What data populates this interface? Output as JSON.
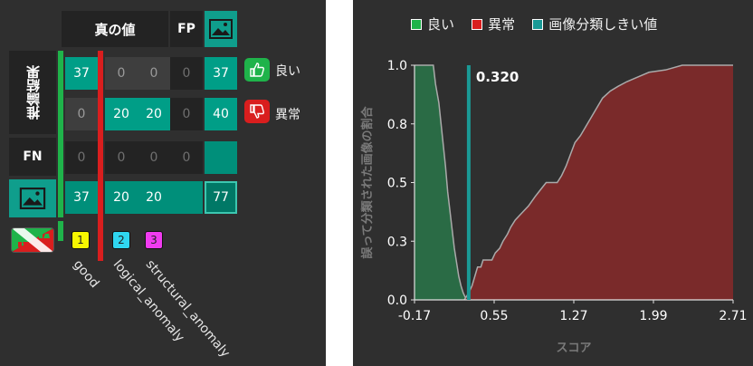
{
  "matrix": {
    "header_true": "真の値",
    "header_fp": "FP",
    "header_pred": "推論結果",
    "header_fn": "FN",
    "cells": {
      "r1": [
        "37",
        "0",
        "0",
        "0",
        "37"
      ],
      "r2": [
        "0",
        "20",
        "20",
        "0",
        "40"
      ],
      "fn": [
        "0",
        "0",
        "0",
        "0"
      ],
      "tot": [
        "37",
        "20",
        "20",
        "",
        "77"
      ]
    },
    "legend": {
      "good_label": "良い",
      "anomaly_label": "異常"
    },
    "classes": [
      {
        "id": "1",
        "name": "good",
        "color": "#f7f700"
      },
      {
        "id": "2",
        "name": "logical_anomaly",
        "color": "#2fd6f0"
      },
      {
        "id": "3",
        "name": "structural_anomaly",
        "color": "#f03bf0"
      }
    ],
    "colors": {
      "good": "#1fb34a",
      "anomaly": "#d91e1e",
      "teal": "#009e87"
    }
  },
  "chart_data": {
    "type": "area",
    "legend": [
      "良い",
      "異常",
      "画像分類しきい値"
    ],
    "colors": {
      "good": "#2a6b45",
      "anomaly": "#7a2a2a",
      "threshold": "#1a9a96"
    },
    "xlabel": "スコア",
    "ylabel": "誤って分類された画像の割合",
    "xticks": [
      "-0.17",
      "0.55",
      "1.27",
      "1.99",
      "2.71"
    ],
    "yticks": [
      "0.0",
      "0.3",
      "0.5",
      "0.8",
      "1.0"
    ],
    "xlim": [
      -0.17,
      2.71
    ],
    "ylim": [
      0,
      1
    ],
    "threshold": 0.32,
    "threshold_label": "0.320",
    "good_curve": [
      [
        -0.17,
        1.0
      ],
      [
        0.0,
        1.0
      ],
      [
        0.02,
        0.92
      ],
      [
        0.05,
        0.84
      ],
      [
        0.07,
        0.75
      ],
      [
        0.09,
        0.66
      ],
      [
        0.11,
        0.57
      ],
      [
        0.13,
        0.46
      ],
      [
        0.15,
        0.38
      ],
      [
        0.17,
        0.3
      ],
      [
        0.19,
        0.22
      ],
      [
        0.21,
        0.16
      ],
      [
        0.23,
        0.1
      ],
      [
        0.25,
        0.06
      ],
      [
        0.27,
        0.03
      ],
      [
        0.3,
        0.0
      ]
    ],
    "anomaly_curve": [
      [
        0.28,
        0.0
      ],
      [
        0.32,
        0.03
      ],
      [
        0.35,
        0.06
      ],
      [
        0.4,
        0.14
      ],
      [
        0.43,
        0.14
      ],
      [
        0.45,
        0.17
      ],
      [
        0.53,
        0.17
      ],
      [
        0.56,
        0.2
      ],
      [
        0.6,
        0.22
      ],
      [
        0.63,
        0.25
      ],
      [
        0.67,
        0.28
      ],
      [
        0.7,
        0.31
      ],
      [
        0.74,
        0.34
      ],
      [
        0.8,
        0.37
      ],
      [
        0.86,
        0.4
      ],
      [
        0.92,
        0.44
      ],
      [
        0.97,
        0.47
      ],
      [
        1.02,
        0.5
      ],
      [
        1.12,
        0.5
      ],
      [
        1.16,
        0.53
      ],
      [
        1.2,
        0.57
      ],
      [
        1.24,
        0.62
      ],
      [
        1.28,
        0.67
      ],
      [
        1.33,
        0.7
      ],
      [
        1.38,
        0.74
      ],
      [
        1.43,
        0.78
      ],
      [
        1.48,
        0.82
      ],
      [
        1.53,
        0.86
      ],
      [
        1.6,
        0.89
      ],
      [
        1.67,
        0.91
      ],
      [
        1.75,
        0.93
      ],
      [
        1.85,
        0.95
      ],
      [
        1.95,
        0.97
      ],
      [
        2.1,
        0.98
      ],
      [
        2.25,
        1.0
      ],
      [
        2.71,
        1.0
      ]
    ]
  }
}
